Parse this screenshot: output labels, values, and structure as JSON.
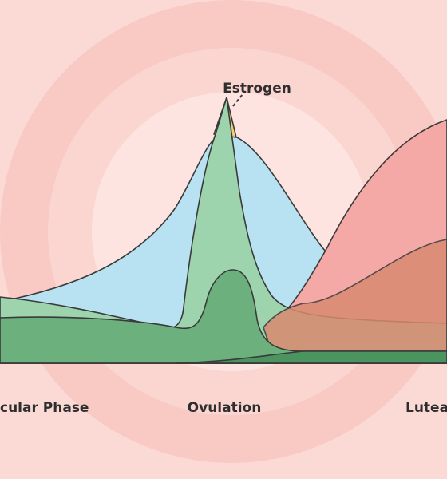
{
  "labels": {
    "hormone": "Estrogen",
    "phases": [
      "cular Phase",
      "Ovulation",
      "Lutea"
    ]
  }
}
